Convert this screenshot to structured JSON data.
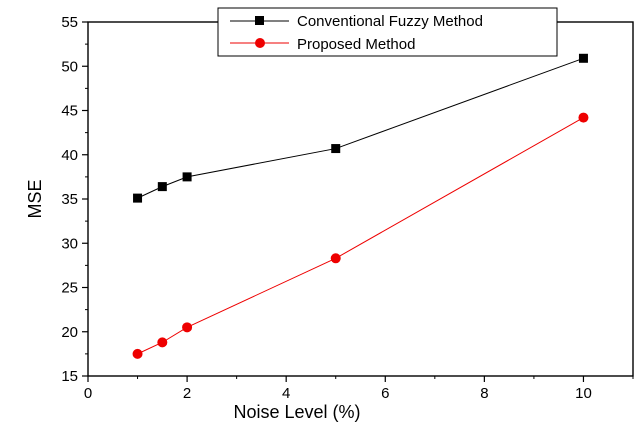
{
  "chart_data": {
    "type": "line",
    "xlabel": "Noise Level (%)",
    "ylabel": "MSE",
    "xlim": [
      0,
      11
    ],
    "ylim": [
      15,
      55
    ],
    "x_ticks": [
      0,
      2,
      4,
      6,
      8,
      10
    ],
    "y_ticks": [
      15,
      20,
      25,
      30,
      35,
      40,
      45,
      50,
      55
    ],
    "grid": false,
    "legend_position": "top-right",
    "series": [
      {
        "name": "Conventional Fuzzy Method",
        "color": "#000000",
        "marker": "square",
        "x": [
          1,
          1.5,
          2,
          5,
          10
        ],
        "y": [
          35.1,
          36.4,
          37.5,
          40.7,
          50.9
        ]
      },
      {
        "name": "Proposed Method",
        "color": "#ee0000",
        "marker": "circle",
        "x": [
          1,
          1.5,
          2,
          5,
          10
        ],
        "y": [
          17.5,
          18.8,
          20.5,
          28.3,
          44.2
        ]
      }
    ]
  }
}
